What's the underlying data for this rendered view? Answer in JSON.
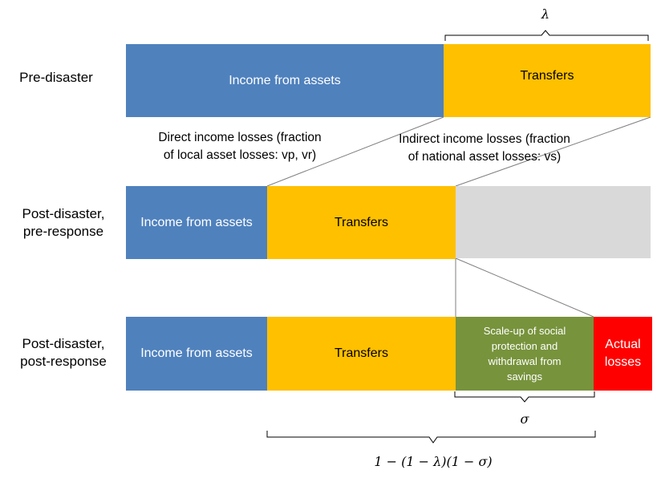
{
  "rows": [
    {
      "label_lines": [
        "Pre-disaster"
      ]
    },
    {
      "label_lines": [
        "Post-disaster,",
        "pre-response"
      ]
    },
    {
      "label_lines": [
        "Post-disaster,",
        "post-response"
      ]
    }
  ],
  "pre": {
    "income": "Income from assets",
    "transfers": "Transfers"
  },
  "post_pre": {
    "income": "Income from assets",
    "transfers": "Transfers"
  },
  "post_post": {
    "income": "Income from assets",
    "transfers": "Transfers",
    "scaleup_lines": [
      "Scale-up of social",
      "protection  and",
      "withdrawal from",
      "savings"
    ],
    "losses_lines": [
      "Actual",
      "losses"
    ]
  },
  "notes": {
    "direct_lines": [
      "Direct income losses (fraction",
      "of local asset losses: vp, vr)"
    ],
    "indirect_lines": [
      "Indirect income losses (fraction",
      "of national asset losses: vs)"
    ]
  },
  "symbols": {
    "lambda": "λ",
    "sigma": "σ",
    "formula": "1 − (1 − λ)(1 − σ)"
  },
  "colors": {
    "income": "#4f81bd",
    "transfers": "#ffc000",
    "lost": "#d9d9d9",
    "scaleup": "#77933c",
    "actual_losses": "#ff0000"
  }
}
